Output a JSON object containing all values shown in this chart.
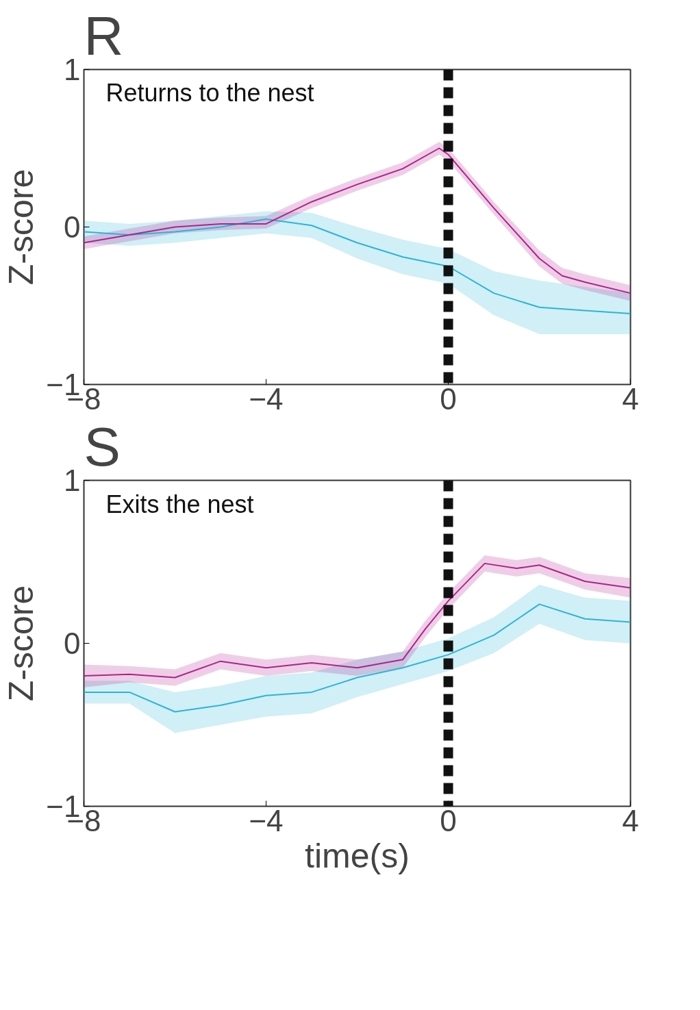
{
  "chart_data": [
    {
      "type": "line",
      "title": "R",
      "ylabel": "Z-score",
      "annotations": [
        "Returns to the nest"
      ],
      "xlim": [
        -8,
        4
      ],
      "ylim": [
        -1,
        1
      ],
      "xticks": [
        -8,
        -4,
        0,
        4
      ],
      "yticks": [
        -1,
        0,
        1
      ],
      "grid": false,
      "marker": "none",
      "line_style": "solid",
      "ref_lines": [
        {
          "axis": "x",
          "value": 0,
          "color": "#111111",
          "line_style": "dashed"
        }
      ],
      "series": [
        {
          "color": "#2bb5d6",
          "x": [
            -8,
            -7,
            -6,
            -5,
            -4,
            -3,
            -2,
            -1,
            0,
            1,
            2,
            3,
            4
          ],
          "values": [
            -0.03,
            -0.05,
            -0.03,
            0,
            0.05,
            0.01,
            -0.1,
            -0.19,
            -0.25,
            -0.42,
            -0.51,
            -0.53,
            -0.55
          ],
          "lower": [
            -0.1,
            -0.12,
            -0.1,
            -0.07,
            -0.04,
            -0.07,
            -0.2,
            -0.3,
            -0.36,
            -0.56,
            -0.68,
            -0.68,
            -0.68
          ],
          "upper": [
            0.04,
            0.02,
            0.04,
            0.07,
            0.1,
            0.09,
            0.0,
            -0.08,
            -0.14,
            -0.28,
            -0.34,
            -0.38,
            -0.42
          ]
        },
        {
          "color": "#b0228e",
          "x": [
            -8,
            -7,
            -6,
            -5,
            -4,
            -3,
            -2,
            -1,
            -0.2,
            0,
            1,
            2,
            2.5,
            3,
            4
          ],
          "values": [
            -0.1,
            -0.05,
            0.0,
            0.02,
            0.02,
            0.16,
            0.27,
            0.37,
            0.5,
            0.46,
            0.12,
            -0.2,
            -0.31,
            -0.35,
            -0.42
          ],
          "lower": [
            -0.14,
            -0.09,
            -0.04,
            -0.02,
            -0.01,
            0.12,
            0.23,
            0.33,
            0.46,
            0.42,
            0.08,
            -0.25,
            -0.36,
            -0.4,
            -0.47
          ],
          "upper": [
            -0.06,
            -0.01,
            0.04,
            0.06,
            0.07,
            0.2,
            0.31,
            0.41,
            0.54,
            0.5,
            0.16,
            -0.15,
            -0.26,
            -0.3,
            -0.37
          ]
        }
      ]
    },
    {
      "type": "line",
      "title": "S",
      "xlabel": "time(s)",
      "ylabel": "Z-score",
      "annotations": [
        "Exits the nest"
      ],
      "xlim": [
        -8,
        4
      ],
      "ylim": [
        -1,
        1
      ],
      "xticks": [
        -8,
        -4,
        0,
        4
      ],
      "yticks": [
        -1,
        0,
        1
      ],
      "grid": false,
      "marker": "none",
      "line_style": "solid",
      "ref_lines": [
        {
          "axis": "x",
          "value": 0,
          "color": "#111111",
          "line_style": "dashed"
        }
      ],
      "series": [
        {
          "color": "#2bb5d6",
          "x": [
            -8,
            -7,
            -6,
            -5,
            -4,
            -3,
            -2,
            -1,
            0,
            1,
            2,
            3,
            4
          ],
          "values": [
            -0.3,
            -0.3,
            -0.42,
            -0.38,
            -0.32,
            -0.3,
            -0.21,
            -0.15,
            -0.07,
            0.05,
            0.24,
            0.15,
            0.13
          ],
          "lower": [
            -0.37,
            -0.37,
            -0.55,
            -0.5,
            -0.45,
            -0.43,
            -0.33,
            -0.25,
            -0.17,
            -0.06,
            0.12,
            0.02,
            0.0
          ],
          "upper": [
            -0.23,
            -0.23,
            -0.3,
            -0.26,
            -0.2,
            -0.18,
            -0.1,
            -0.05,
            0.03,
            0.16,
            0.36,
            0.28,
            0.26
          ]
        },
        {
          "color": "#b0228e",
          "x": [
            -8,
            -7,
            -6,
            -5,
            -4,
            -3,
            -2,
            -1,
            -0.5,
            0,
            0.8,
            1.5,
            2,
            3,
            4
          ],
          "values": [
            -0.2,
            -0.19,
            -0.21,
            -0.11,
            -0.15,
            -0.12,
            -0.15,
            -0.1,
            0.09,
            0.26,
            0.49,
            0.46,
            0.48,
            0.38,
            0.34
          ],
          "lower": [
            -0.27,
            -0.24,
            -0.26,
            -0.16,
            -0.2,
            -0.17,
            -0.2,
            -0.15,
            0.04,
            0.21,
            0.44,
            0.41,
            0.43,
            0.33,
            0.28
          ],
          "upper": [
            -0.13,
            -0.14,
            -0.16,
            -0.06,
            -0.1,
            -0.07,
            -0.1,
            -0.05,
            0.14,
            0.31,
            0.54,
            0.51,
            0.53,
            0.43,
            0.4
          ]
        }
      ]
    }
  ]
}
